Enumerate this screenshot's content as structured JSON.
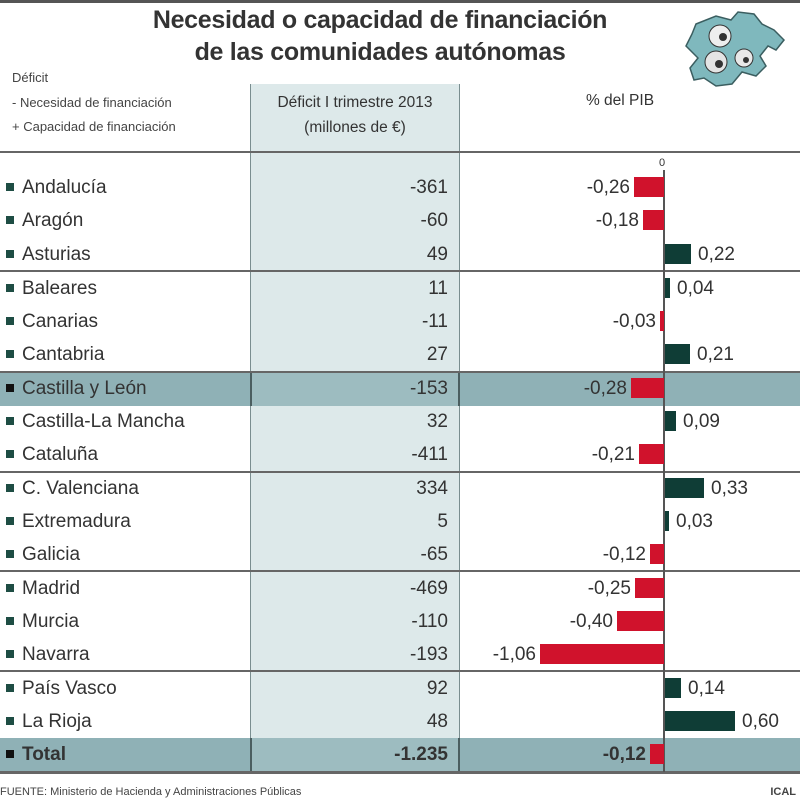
{
  "header": {
    "title_line1": "Necesidad o capacidad de financiación",
    "title_line2": "de las comunidades autónomas",
    "legend_title": "Déficit",
    "legend_negative": "- Necesidad de financiación",
    "legend_positive": "+ Capacidad de financiación",
    "column_deficit_line1": "Déficit I trimestre 2013",
    "column_deficit_line2": "(millones de €)",
    "column_pib": "% del PIB",
    "zero_label": "0"
  },
  "footer": {
    "source": "FUENTE: Ministerio de Hacienda y Administraciones Públicas",
    "credit": "ICAL"
  },
  "colors": {
    "negative_bar": "#d0122c",
    "positive_bar": "#0f3d36",
    "deficit_column_bg": "#dde9ea",
    "highlight_row_bg": "#8fb1b6"
  },
  "rows": [
    {
      "name": "Andalucía",
      "deficit": "-361",
      "pib": "-0,26"
    },
    {
      "name": "Aragón",
      "deficit": "-60",
      "pib": "-0,18"
    },
    {
      "name": "Asturias",
      "deficit": "49",
      "pib": "0,22"
    },
    {
      "name": "Baleares",
      "deficit": "11",
      "pib": "0,04"
    },
    {
      "name": "Canarias",
      "deficit": "-11",
      "pib": "-0,03"
    },
    {
      "name": "Cantabria",
      "deficit": "27",
      "pib": "0,21"
    },
    {
      "name": "Castilla y León",
      "deficit": "-153",
      "pib": "-0,28"
    },
    {
      "name": "Castilla-La Mancha",
      "deficit": "32",
      "pib": "0,09"
    },
    {
      "name": "Cataluña",
      "deficit": "-411",
      "pib": "-0,21"
    },
    {
      "name": "C. Valenciana",
      "deficit": "334",
      "pib": "0,33"
    },
    {
      "name": "Extremadura",
      "deficit": "5",
      "pib": "0,03"
    },
    {
      "name": "Galicia",
      "deficit": "-65",
      "pib": "-0,12"
    },
    {
      "name": "Madrid",
      "deficit": "-469",
      "pib": "-0,25"
    },
    {
      "name": "Murcia",
      "deficit": "-110",
      "pib": "-0,40"
    },
    {
      "name": "Navarra",
      "deficit": "-193",
      "pib": "-1,06"
    },
    {
      "name": "País Vasco",
      "deficit": "92",
      "pib": "0,14"
    },
    {
      "name": "La Rioja",
      "deficit": "48",
      "pib": "0,60"
    },
    {
      "name": "Total",
      "deficit": "-1.235",
      "pib": "-0,12"
    }
  ],
  "chart_data": {
    "type": "bar",
    "orientation": "horizontal",
    "title": "Necesidad o capacidad de financiación de las comunidades autónomas",
    "categories": [
      "Andalucía",
      "Aragón",
      "Asturias",
      "Baleares",
      "Canarias",
      "Cantabria",
      "Castilla y León",
      "Castilla-La Mancha",
      "Cataluña",
      "C. Valenciana",
      "Extremadura",
      "Galicia",
      "Madrid",
      "Murcia",
      "Navarra",
      "País Vasco",
      "La Rioja",
      "Total"
    ],
    "series": [
      {
        "name": "Déficit I trimestre 2013 (millones de €)",
        "values": [
          -361,
          -60,
          49,
          11,
          -11,
          27,
          -153,
          32,
          -411,
          334,
          5,
          -65,
          -469,
          -110,
          -193,
          92,
          48,
          -1235
        ]
      },
      {
        "name": "% del PIB",
        "values": [
          -0.26,
          -0.18,
          0.22,
          0.04,
          -0.03,
          0.21,
          -0.28,
          0.09,
          -0.21,
          0.33,
          0.03,
          -0.12,
          -0.25,
          -0.4,
          -1.06,
          0.14,
          0.6,
          -0.12
        ]
      }
    ],
    "xlabel": "% del PIB",
    "ylabel": "",
    "legend": [
      "- Necesidad de financiación",
      "+ Capacidad de financiación"
    ],
    "highlighted": [
      "Castilla y León",
      "Total"
    ],
    "source": "FUENTE: Ministerio de Hacienda y Administraciones Públicas"
  }
}
